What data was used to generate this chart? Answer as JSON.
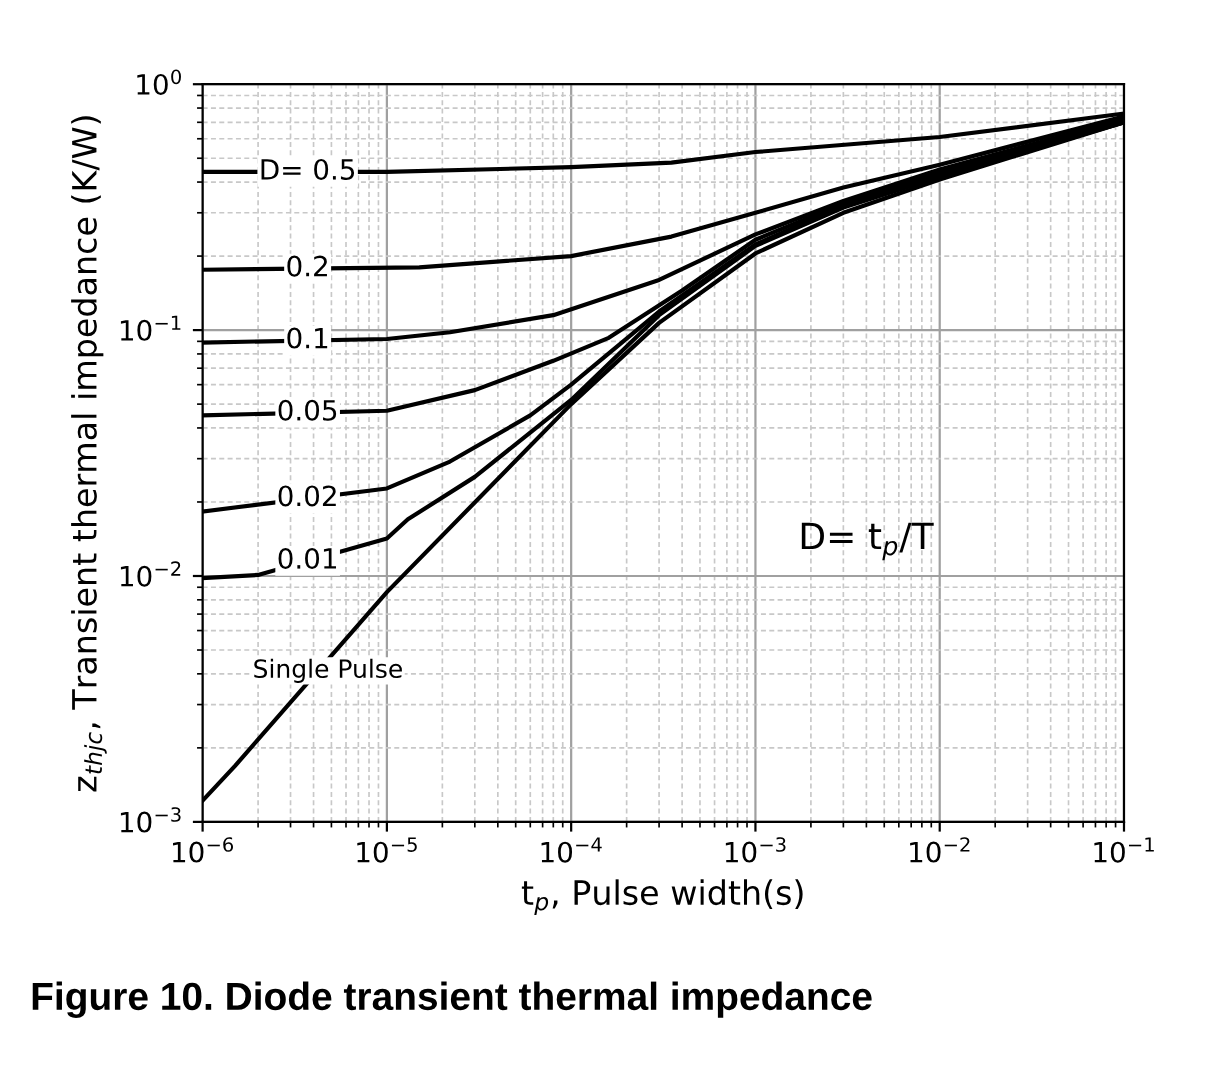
{
  "chart_data": {
    "type": "line",
    "xlabel": "t$_{p}$, Pulse width(s)",
    "ylabel": "z$_{thjc}$, Transient thermal impedance (K/W)",
    "log": "xy",
    "grid": true,
    "marker": "none",
    "line_style": "solid",
    "xlim": [
      1e-06,
      0.1
    ],
    "ylim": [
      0.001,
      1
    ],
    "xticks": [
      {
        "value": 1e-06,
        "label": "10$^{−6}$"
      },
      {
        "value": 1e-05,
        "label": "10$^{−5}$"
      },
      {
        "value": 0.0001,
        "label": "10$^{−4}$"
      },
      {
        "value": 0.001,
        "label": "10$^{−3}$"
      },
      {
        "value": 0.01,
        "label": "10$^{−2}$"
      },
      {
        "value": 0.1,
        "label": "10$^{−1}$"
      }
    ],
    "yticks": [
      {
        "value": 0.001,
        "label": "10$^{−3}$"
      },
      {
        "value": 0.01,
        "label": "10$^{−2}$"
      },
      {
        "value": 0.1,
        "label": "10$^{−1}$"
      },
      {
        "value": 1,
        "label": "10$^{0}$"
      }
    ],
    "series": [
      {
        "name": "D= 0.5",
        "color": "#000000",
        "x": [
          1e-06,
          1e-05,
          0.0001,
          0.00035,
          0.001,
          0.01,
          0.1
        ],
        "values": [
          0.44,
          0.44,
          0.46,
          0.48,
          0.53,
          0.61,
          0.76
        ]
      },
      {
        "name": "0.2",
        "color": "#000000",
        "x": [
          1e-06,
          1.5e-05,
          0.0001,
          0.00035,
          0.001,
          0.003,
          0.01,
          0.1
        ],
        "values": [
          0.176,
          0.18,
          0.2,
          0.24,
          0.3,
          0.38,
          0.47,
          0.74
        ]
      },
      {
        "name": "0.1",
        "color": "#000000",
        "x": [
          1e-06,
          1e-05,
          2.2e-05,
          8e-05,
          0.0003,
          0.001,
          0.003,
          0.01,
          0.1
        ],
        "values": [
          0.089,
          0.092,
          0.098,
          0.115,
          0.16,
          0.245,
          0.335,
          0.45,
          0.72
        ]
      },
      {
        "name": "0.05",
        "color": "#000000",
        "x": [
          1e-06,
          1e-05,
          3e-05,
          8e-05,
          0.00016,
          0.0004,
          0.001,
          0.003,
          0.01,
          0.1
        ],
        "values": [
          0.045,
          0.047,
          0.057,
          0.075,
          0.093,
          0.145,
          0.233,
          0.327,
          0.436,
          0.71
        ]
      },
      {
        "name": "0.02",
        "color": "#000000",
        "x": [
          1e-06,
          1e-05,
          2.2e-05,
          6e-05,
          0.0001,
          0.0003,
          0.001,
          0.003,
          0.01,
          0.1
        ],
        "values": [
          0.0183,
          0.0227,
          0.0292,
          0.045,
          0.06,
          0.119,
          0.223,
          0.32,
          0.43,
          0.7
        ]
      },
      {
        "name": "0.01",
        "color": "#000000",
        "x": [
          1e-06,
          2e-06,
          1e-05,
          1.3e-05,
          3e-05,
          0.0001,
          0.0003,
          0.001,
          0.003,
          0.01,
          0.1
        ],
        "values": [
          0.0098,
          0.0101,
          0.0142,
          0.017,
          0.0253,
          0.052,
          0.115,
          0.22,
          0.315,
          0.42,
          0.7
        ]
      },
      {
        "name": "Single Pulse",
        "color": "#000000",
        "x": [
          1e-06,
          1.5e-06,
          1e-05,
          0.0001,
          0.0003,
          0.001,
          0.003,
          0.01,
          0.1
        ],
        "values": [
          0.00122,
          0.00169,
          0.0086,
          0.05,
          0.107,
          0.205,
          0.3,
          0.41,
          0.7
        ]
      }
    ],
    "annotations": [
      "D= t$_{p}$/T",
      "Figure 10. Diode transient thermal impedance"
    ]
  }
}
